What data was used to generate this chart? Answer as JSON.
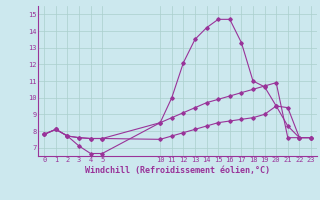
{
  "background_color": "#cce8ee",
  "grid_color": "#aacfcc",
  "line_color": "#993399",
  "xlabel": "Windchill (Refroidissement éolien,°C)",
  "xlim": [
    -0.5,
    23.5
  ],
  "ylim": [
    6.5,
    15.5
  ],
  "yticks": [
    7,
    8,
    9,
    10,
    11,
    12,
    13,
    14,
    15
  ],
  "xticks": [
    0,
    1,
    2,
    3,
    4,
    5,
    10,
    11,
    12,
    13,
    14,
    15,
    16,
    17,
    18,
    19,
    20,
    21,
    22,
    23
  ],
  "line1_x": [
    0,
    1,
    2,
    3,
    4,
    5,
    10,
    11,
    12,
    13,
    14,
    15,
    16,
    17,
    18,
    19,
    20,
    21,
    22,
    23
  ],
  "line1_y": [
    7.8,
    8.1,
    7.7,
    7.1,
    6.65,
    6.65,
    8.5,
    10.0,
    12.1,
    13.5,
    14.2,
    14.7,
    14.7,
    13.3,
    11.0,
    10.65,
    9.5,
    8.3,
    7.6,
    7.6
  ],
  "line2_x": [
    0,
    1,
    2,
    3,
    4,
    5,
    10,
    11,
    12,
    13,
    14,
    15,
    16,
    17,
    18,
    19,
    20,
    21,
    22,
    23
  ],
  "line2_y": [
    7.8,
    8.1,
    7.7,
    7.6,
    7.55,
    7.55,
    8.5,
    8.8,
    9.1,
    9.4,
    9.7,
    9.9,
    10.1,
    10.3,
    10.5,
    10.7,
    10.9,
    7.6,
    7.6,
    7.6
  ],
  "line3_x": [
    0,
    1,
    2,
    3,
    4,
    5,
    10,
    11,
    12,
    13,
    14,
    15,
    16,
    17,
    18,
    19,
    20,
    21,
    22,
    23
  ],
  "line3_y": [
    7.8,
    8.1,
    7.7,
    7.6,
    7.55,
    7.55,
    7.5,
    7.7,
    7.9,
    8.1,
    8.3,
    8.5,
    8.6,
    8.7,
    8.8,
    9.0,
    9.5,
    9.4,
    7.6,
    7.6
  ]
}
